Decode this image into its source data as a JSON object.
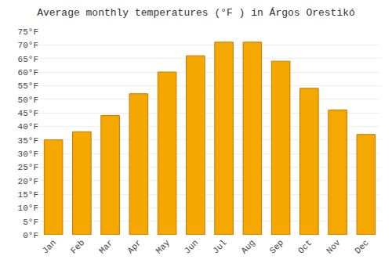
{
  "chart_data": {
    "type": "bar",
    "title": "Average monthly temperatures (°F ) in Árgos Orestikó",
    "categories": [
      "Jan",
      "Feb",
      "Mar",
      "Apr",
      "May",
      "Jun",
      "Jul",
      "Aug",
      "Sep",
      "Oct",
      "Nov",
      "Dec"
    ],
    "values": [
      35,
      38,
      44,
      52,
      60,
      66,
      71,
      71,
      64,
      54,
      46,
      37
    ],
    "color": "#F5A800",
    "ylim": [
      0,
      75
    ],
    "yticks": [
      {
        "value": 0,
        "label": "0°F"
      },
      {
        "value": 5,
        "label": "5°F"
      },
      {
        "value": 10,
        "label": "10°F"
      },
      {
        "value": 15,
        "label": "15°F"
      },
      {
        "value": 20,
        "label": "20°F"
      },
      {
        "value": 25,
        "label": "25°F"
      },
      {
        "value": 30,
        "label": "30°F"
      },
      {
        "value": 35,
        "label": "35°F"
      },
      {
        "value": 40,
        "label": "40°F"
      },
      {
        "value": 45,
        "label": "45°F"
      },
      {
        "value": 50,
        "label": "50°F"
      },
      {
        "value": 55,
        "label": "55°F"
      },
      {
        "value": 60,
        "label": "60°F"
      },
      {
        "value": 65,
        "label": "65°F"
      },
      {
        "value": 70,
        "label": "70°F"
      },
      {
        "value": 75,
        "label": "75°F"
      }
    ],
    "grid": true
  }
}
